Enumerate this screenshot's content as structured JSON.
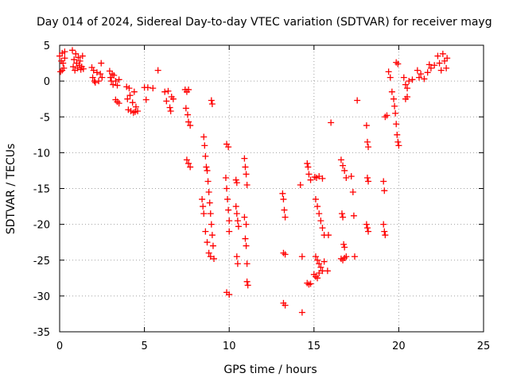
{
  "chart_data": {
    "type": "scatter",
    "title": "Day 014 of 2024, Sidereal Day-to-day VTEC variation (SDTVAR) for receiver mayg",
    "xlabel": "GPS time / hours",
    "ylabel": "SDTVAR / TECUs",
    "xlim": [
      0,
      25
    ],
    "ylim": [
      -35,
      5
    ],
    "x_ticks": [
      0,
      5,
      10,
      15,
      20,
      25
    ],
    "y_ticks": [
      5,
      0,
      -5,
      -10,
      -15,
      -20,
      -25,
      -30,
      -35
    ],
    "grid": true,
    "marker": "+",
    "color": "#ff0000",
    "series": [
      {
        "name": "SDTVAR",
        "points": [
          [
            0.0,
            3.5
          ],
          [
            0.1,
            2.8
          ],
          [
            0.15,
            3.9
          ],
          [
            0.2,
            2.5
          ],
          [
            0.25,
            1.8
          ],
          [
            0.3,
            3.2
          ],
          [
            0.3,
            4.1
          ],
          [
            0.05,
            1.3
          ],
          [
            0.15,
            1.5
          ],
          [
            0.75,
            4.3
          ],
          [
            0.8,
            2.0
          ],
          [
            0.85,
            3.0
          ],
          [
            0.9,
            1.5
          ],
          [
            0.95,
            3.8
          ],
          [
            1.0,
            2.5
          ],
          [
            1.05,
            1.8
          ],
          [
            1.1,
            3.3
          ],
          [
            1.15,
            2.2
          ],
          [
            1.2,
            2.8
          ],
          [
            1.25,
            1.6
          ],
          [
            1.3,
            2.0
          ],
          [
            1.35,
            3.5
          ],
          [
            1.4,
            1.7
          ],
          [
            1.9,
            1.9
          ],
          [
            1.95,
            0.5
          ],
          [
            2.0,
            1.5
          ],
          [
            2.05,
            0.0
          ],
          [
            2.1,
            -0.2
          ],
          [
            2.2,
            1.2
          ],
          [
            2.3,
            0.0
          ],
          [
            2.4,
            1.0
          ],
          [
            2.5,
            0.5
          ],
          [
            2.45,
            2.5
          ],
          [
            2.95,
            1.4
          ],
          [
            3.0,
            0.5
          ],
          [
            3.05,
            0.0
          ],
          [
            3.1,
            1.0
          ],
          [
            3.15,
            -0.5
          ],
          [
            3.2,
            0.8
          ],
          [
            3.3,
            0.0
          ],
          [
            3.4,
            -0.6
          ],
          [
            3.5,
            0.2
          ],
          [
            3.3,
            -2.6
          ],
          [
            3.4,
            -2.9
          ],
          [
            3.5,
            -3.1
          ],
          [
            3.95,
            -0.8
          ],
          [
            4.0,
            -2.5
          ],
          [
            4.05,
            -4.0
          ],
          [
            4.1,
            -1.0
          ],
          [
            4.15,
            -2.0
          ],
          [
            4.2,
            -4.2
          ],
          [
            4.3,
            -3.0
          ],
          [
            4.35,
            -4.4
          ],
          [
            4.4,
            -1.5
          ],
          [
            4.45,
            -4.3
          ],
          [
            4.5,
            -3.6
          ],
          [
            4.6,
            -4.2
          ],
          [
            5.0,
            -0.9
          ],
          [
            5.1,
            -2.6
          ],
          [
            5.2,
            -0.9
          ],
          [
            5.5,
            -1.0
          ],
          [
            5.8,
            1.5
          ],
          [
            6.2,
            -1.5
          ],
          [
            6.3,
            -2.8
          ],
          [
            6.4,
            -1.4
          ],
          [
            6.5,
            -3.7
          ],
          [
            6.55,
            -4.2
          ],
          [
            6.6,
            -2.2
          ],
          [
            6.7,
            -2.5
          ],
          [
            7.4,
            -1.2
          ],
          [
            7.5,
            -1.5
          ],
          [
            7.6,
            -1.2
          ],
          [
            7.45,
            -3.8
          ],
          [
            7.55,
            -4.7
          ],
          [
            7.6,
            -5.7
          ],
          [
            7.7,
            -6.2
          ],
          [
            7.5,
            -11.0
          ],
          [
            7.6,
            -11.5
          ],
          [
            7.7,
            -12.0
          ],
          [
            8.5,
            -7.8
          ],
          [
            8.55,
            -9.0
          ],
          [
            8.6,
            -10.5
          ],
          [
            8.65,
            -12.0
          ],
          [
            8.7,
            -12.5
          ],
          [
            8.75,
            -14.0
          ],
          [
            8.8,
            -15.5
          ],
          [
            8.85,
            -17.0
          ],
          [
            8.9,
            -18.5
          ],
          [
            8.95,
            -20.0
          ],
          [
            9.0,
            -21.5
          ],
          [
            9.05,
            -23.0
          ],
          [
            9.1,
            -24.8
          ],
          [
            8.4,
            -16.5
          ],
          [
            8.45,
            -17.5
          ],
          [
            8.5,
            -18.5
          ],
          [
            8.6,
            -21.0
          ],
          [
            8.7,
            -22.5
          ],
          [
            8.8,
            -24.0
          ],
          [
            8.9,
            -24.5
          ],
          [
            8.95,
            -2.7
          ],
          [
            9.0,
            -3.2
          ],
          [
            9.85,
            -8.8
          ],
          [
            9.95,
            -9.2
          ],
          [
            9.8,
            -13.5
          ],
          [
            9.85,
            -15.0
          ],
          [
            9.9,
            -16.5
          ],
          [
            9.95,
            -18.0
          ],
          [
            10.0,
            -19.5
          ],
          [
            10.0,
            -21.0
          ],
          [
            9.85,
            -29.5
          ],
          [
            10.0,
            -29.8
          ],
          [
            10.4,
            -13.8
          ],
          [
            10.45,
            -14.2
          ],
          [
            10.4,
            -17.5
          ],
          [
            10.45,
            -18.5
          ],
          [
            10.5,
            -19.5
          ],
          [
            10.55,
            -20.3
          ],
          [
            10.45,
            -24.5
          ],
          [
            10.5,
            -25.5
          ],
          [
            10.9,
            -10.8
          ],
          [
            10.95,
            -12.0
          ],
          [
            11.0,
            -13.0
          ],
          [
            11.05,
            -14.5
          ],
          [
            10.9,
            -19.0
          ],
          [
            11.0,
            -20.0
          ],
          [
            11.05,
            -25.5
          ],
          [
            10.95,
            -22.0
          ],
          [
            11.0,
            -23.0
          ],
          [
            11.05,
            -28.0
          ],
          [
            11.1,
            -28.5
          ],
          [
            13.15,
            -15.7
          ],
          [
            13.2,
            -16.5
          ],
          [
            13.25,
            -18.0
          ],
          [
            13.3,
            -19.0
          ],
          [
            13.2,
            -24.0
          ],
          [
            13.3,
            -24.2
          ],
          [
            13.2,
            -31.0
          ],
          [
            13.3,
            -31.3
          ],
          [
            14.2,
            -14.5
          ],
          [
            14.3,
            -24.5
          ],
          [
            14.3,
            -32.3
          ],
          [
            14.6,
            -11.5
          ],
          [
            14.65,
            -12.0
          ],
          [
            14.7,
            -13.0
          ],
          [
            14.8,
            -13.8
          ],
          [
            14.6,
            -28.2
          ],
          [
            14.7,
            -28.4
          ],
          [
            14.8,
            -28.3
          ],
          [
            15.05,
            -13.4
          ],
          [
            15.15,
            -13.5
          ],
          [
            15.3,
            -13.3
          ],
          [
            15.5,
            -13.6
          ],
          [
            15.1,
            -16.5
          ],
          [
            15.2,
            -17.5
          ],
          [
            15.3,
            -18.5
          ],
          [
            15.4,
            -19.5
          ],
          [
            15.5,
            -20.5
          ],
          [
            15.6,
            -21.5
          ],
          [
            15.1,
            -24.5
          ],
          [
            15.2,
            -25.0
          ],
          [
            15.3,
            -25.5
          ],
          [
            15.4,
            -26.0
          ],
          [
            15.5,
            -26.5
          ],
          [
            15.6,
            -25.2
          ],
          [
            15.0,
            -27.0
          ],
          [
            15.1,
            -27.3
          ],
          [
            15.2,
            -27.5
          ],
          [
            15.3,
            -26.8
          ],
          [
            15.8,
            -26.5
          ],
          [
            15.85,
            -21.5
          ],
          [
            16.0,
            -5.8
          ],
          [
            16.6,
            -11.0
          ],
          [
            16.7,
            -11.8
          ],
          [
            16.8,
            -12.5
          ],
          [
            16.9,
            -13.5
          ],
          [
            16.65,
            -18.5
          ],
          [
            16.7,
            -19.0
          ],
          [
            16.75,
            -22.8
          ],
          [
            16.8,
            -23.2
          ],
          [
            16.6,
            -24.8
          ],
          [
            16.7,
            -25.0
          ],
          [
            16.8,
            -24.7
          ],
          [
            16.9,
            -24.5
          ],
          [
            17.2,
            -13.3
          ],
          [
            17.3,
            -15.5
          ],
          [
            17.35,
            -18.8
          ],
          [
            17.4,
            -24.5
          ],
          [
            17.55,
            -2.7
          ],
          [
            18.1,
            -6.2
          ],
          [
            18.15,
            -8.5
          ],
          [
            18.2,
            -9.2
          ],
          [
            18.15,
            -13.5
          ],
          [
            18.2,
            -14.0
          ],
          [
            18.1,
            -20.0
          ],
          [
            18.15,
            -20.5
          ],
          [
            18.2,
            -21.0
          ],
          [
            19.2,
            -5.0
          ],
          [
            19.3,
            -4.8
          ],
          [
            19.1,
            -14.0
          ],
          [
            19.15,
            -15.3
          ],
          [
            19.1,
            -20.0
          ],
          [
            19.15,
            -21.0
          ],
          [
            19.2,
            -21.5
          ],
          [
            19.4,
            1.3
          ],
          [
            19.5,
            0.5
          ],
          [
            19.6,
            -1.5
          ],
          [
            19.7,
            -2.5
          ],
          [
            19.75,
            -3.5
          ],
          [
            19.8,
            -4.5
          ],
          [
            19.85,
            -6.0
          ],
          [
            19.9,
            -7.5
          ],
          [
            19.95,
            -8.5
          ],
          [
            20.0,
            -9.0
          ],
          [
            19.85,
            2.6
          ],
          [
            19.95,
            2.4
          ],
          [
            20.3,
            0.5
          ],
          [
            20.4,
            -0.5
          ],
          [
            20.5,
            -1.0
          ],
          [
            20.4,
            -2.5
          ],
          [
            20.5,
            -2.2
          ],
          [
            20.6,
            0.0
          ],
          [
            20.8,
            0.2
          ],
          [
            21.1,
            1.5
          ],
          [
            21.2,
            0.5
          ],
          [
            21.3,
            1.0
          ],
          [
            21.5,
            0.3
          ],
          [
            21.7,
            1.2
          ],
          [
            21.9,
            1.8
          ],
          [
            21.8,
            2.3
          ],
          [
            22.1,
            2.2
          ],
          [
            22.3,
            3.5
          ],
          [
            22.4,
            2.5
          ],
          [
            22.5,
            1.5
          ],
          [
            22.6,
            3.8
          ],
          [
            22.7,
            2.8
          ],
          [
            22.8,
            1.8
          ],
          [
            22.85,
            3.2
          ]
        ]
      }
    ]
  }
}
